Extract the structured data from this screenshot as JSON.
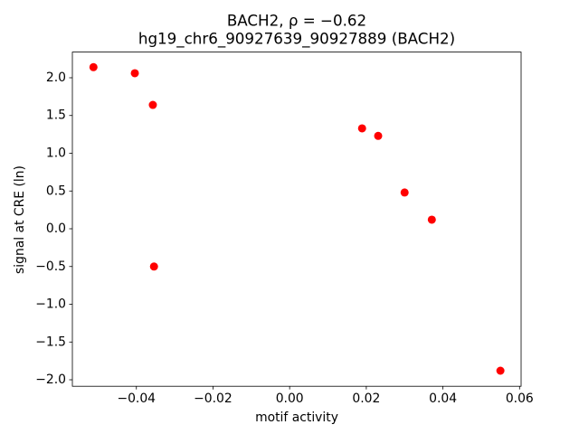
{
  "chart_data": {
    "type": "scatter",
    "title": "BACH2, ρ = −0.62",
    "subtitle": "hg19_chr6_90927639_90927889 (BACH2)",
    "x_label": "motif activity",
    "y_label": "signal at CRE (ln)",
    "color": "red",
    "x": [
      -0.0512,
      -0.0404,
      -0.0357,
      -0.0354,
      0.0189,
      0.0231,
      0.03,
      0.0371,
      0.055
    ],
    "y": [
      2.14,
      2.06,
      1.64,
      -0.5,
      1.33,
      1.23,
      0.48,
      0.12,
      -1.88
    ],
    "xlim": [
      -0.0567,
      0.0604
    ],
    "ylim": [
      -2.086,
      2.34
    ],
    "xticks": [
      {
        "value": -0.04,
        "label": "−0.04"
      },
      {
        "value": -0.02,
        "label": "−0.02"
      },
      {
        "value": 0,
        "label": "0.00"
      },
      0.02,
      0.04,
      0.06
    ],
    "yticks": [
      {
        "value": -2,
        "label": "−2.0"
      },
      {
        "value": -1.5,
        "label": "−1.5"
      },
      {
        "value": -1,
        "label": "−1.0"
      },
      {
        "value": -0.5,
        "label": "−0.5"
      },
      {
        "value": 0,
        "label": "0.0"
      },
      0.5,
      {
        "value": 1,
        "label": "1.0"
      },
      1.5,
      {
        "value": 2,
        "label": "2.0"
      }
    ]
  }
}
